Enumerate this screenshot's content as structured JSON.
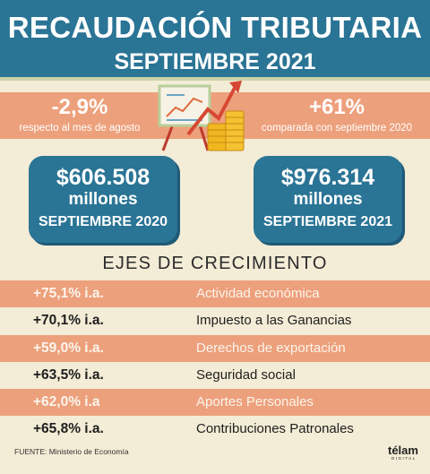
{
  "header": {
    "title": "RECAUDACIÓN TRIBUTARIA",
    "subtitle": "SEPTIEMBRE 2021"
  },
  "monthly_change": {
    "value": "-2,9%",
    "label": "respecto al mes de agosto"
  },
  "yearly_change": {
    "value": "+61%",
    "label": "comparada con septiembre 2020"
  },
  "cards": [
    {
      "amount": "$606.508",
      "unit": "millones",
      "period": "SEPTIEMBRE 2020"
    },
    {
      "amount": "$976.314",
      "unit": "millones",
      "period": "SEPTIEMBRE 2021"
    }
  ],
  "section_title": "EJES DE CRECIMIENTO",
  "rows": [
    {
      "value": "+75,1% i.a.",
      "label": "Actividad económica"
    },
    {
      "value": "+70,1% i.a.",
      "label": "Impuesto a las Ganancias"
    },
    {
      "value": "+59,0% i.a.",
      "label": "Derechos de exportación"
    },
    {
      "value": "+63,5% i.a.",
      "label": "Seguridad social"
    },
    {
      "value": "+62,0% i.a",
      "label": "Aportes Personales"
    },
    {
      "value": "+65,8% i.a.",
      "label": "Contribuciones Patronales"
    }
  ],
  "footer": {
    "source": "FUENTE: Ministerio de Economía",
    "logo": "télam",
    "logo_sub": "DIGITAL"
  },
  "colors": {
    "blue": "#2a7495",
    "orange": "#eda07c",
    "cream": "#f3ecd6"
  },
  "icons": [
    "growth-chart-board-icon",
    "coin-stacks-icon"
  ]
}
